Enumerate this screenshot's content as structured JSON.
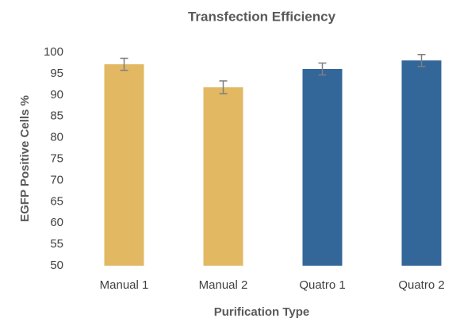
{
  "chart_data": {
    "type": "bar",
    "title": "Transfection Efficiency",
    "xlabel": "Purification Type",
    "ylabel": "EGFP Positive Cells %",
    "categories": [
      "Manual 1",
      "Manual 2",
      "Quatro 1",
      "Quatro 2"
    ],
    "values": [
      97.2,
      91.8,
      96.1,
      98.1
    ],
    "errors": [
      1.4,
      1.5,
      1.4,
      1.4
    ],
    "colors": [
      "#e2b862",
      "#e2b862",
      "#336699",
      "#336699"
    ],
    "ylim": [
      50,
      100
    ],
    "yticks": [
      50,
      55,
      60,
      65,
      70,
      75,
      80,
      85,
      90,
      95,
      100
    ],
    "grid": false
  }
}
